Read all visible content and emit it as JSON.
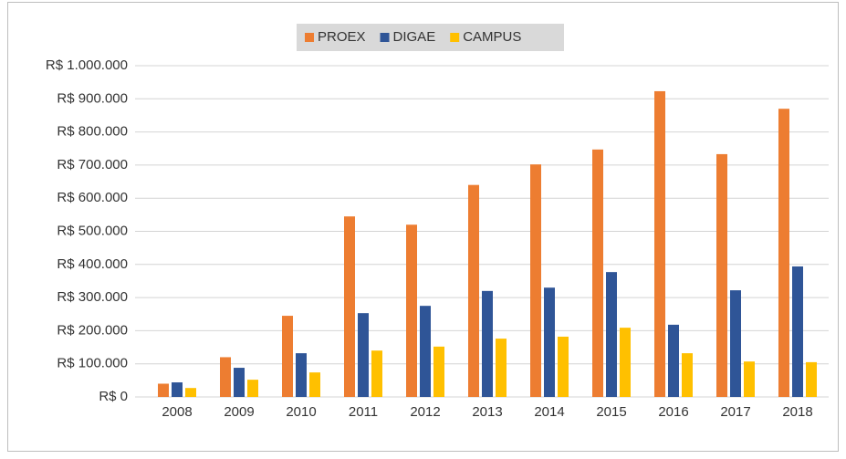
{
  "chart_data": {
    "type": "bar",
    "categories": [
      "2008",
      "2009",
      "2010",
      "2011",
      "2012",
      "2013",
      "2014",
      "2015",
      "2016",
      "2017",
      "2018"
    ],
    "series": [
      {
        "name": "PROEX",
        "color": "#ed7d31",
        "values": [
          40000,
          120000,
          245000,
          545000,
          520000,
          640000,
          702000,
          747000,
          923000,
          733000,
          870000
        ]
      },
      {
        "name": "DIGAE",
        "color": "#2f5597",
        "values": [
          44000,
          88000,
          132000,
          253000,
          275000,
          320000,
          330000,
          377000,
          218000,
          322000,
          394000
        ]
      },
      {
        "name": "CAMPUS",
        "color": "#ffc000",
        "values": [
          27000,
          52000,
          74000,
          140000,
          152000,
          176000,
          182000,
          209000,
          132000,
          107000,
          105000
        ]
      }
    ],
    "ylim": [
      0,
      1000000
    ],
    "yticks": [
      {
        "value": 0,
        "label": "R$ 0"
      },
      {
        "value": 100000,
        "label": "R$ 100.000"
      },
      {
        "value": 200000,
        "label": "R$ 200.000"
      },
      {
        "value": 300000,
        "label": "R$ 300.000"
      },
      {
        "value": 400000,
        "label": "R$ 400.000"
      },
      {
        "value": 500000,
        "label": "R$ 500.000"
      },
      {
        "value": 600000,
        "label": "R$ 600.000"
      },
      {
        "value": 700000,
        "label": "R$ 700.000"
      },
      {
        "value": 800000,
        "label": "R$ 800.000"
      },
      {
        "value": 900000,
        "label": "R$ 900.000"
      },
      {
        "value": 1000000,
        "label": "R$ 1.000.000"
      }
    ],
    "grid": true,
    "legend": "top"
  }
}
